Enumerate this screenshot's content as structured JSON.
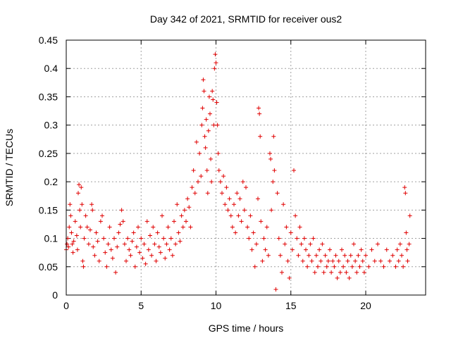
{
  "chart_data": {
    "type": "scatter",
    "title": "Day 342 of 2021, SRMTID for receiver ous2",
    "xlabel": "GPS time / hours",
    "ylabel": "SRMTID / TECUs",
    "xlim": [
      0,
      24
    ],
    "ylim": [
      0,
      0.45
    ],
    "x_ticks": [
      0,
      5,
      10,
      15,
      20
    ],
    "x_tick_labels": [
      "0",
      "5",
      "10",
      "15",
      "20"
    ],
    "y_ticks": [
      0,
      0.05,
      0.1,
      0.15,
      0.2,
      0.25,
      0.3,
      0.35,
      0.4,
      0.45
    ],
    "y_tick_labels": [
      "0",
      "0.05",
      "0.1",
      "0.15",
      "0.2",
      "0.25",
      "0.3",
      "0.35",
      "0.4",
      "0.45"
    ],
    "grid": true,
    "marker": "plus",
    "color": "#e00000",
    "series": [
      {
        "name": "ous2",
        "points": [
          [
            0.0,
            0.08
          ],
          [
            0.05,
            0.09
          ],
          [
            0.1,
            0.1
          ],
          [
            0.15,
            0.085
          ],
          [
            0.2,
            0.12
          ],
          [
            0.25,
            0.16
          ],
          [
            0.3,
            0.14
          ],
          [
            0.35,
            0.11
          ],
          [
            0.4,
            0.09
          ],
          [
            0.45,
            0.075
          ],
          [
            0.5,
            0.095
          ],
          [
            0.6,
            0.13
          ],
          [
            0.7,
            0.105
          ],
          [
            0.75,
            0.08
          ],
          [
            0.8,
            0.18
          ],
          [
            0.85,
            0.195
          ],
          [
            0.9,
            0.15
          ],
          [
            0.95,
            0.12
          ],
          [
            1.0,
            0.19
          ],
          [
            1.05,
            0.16
          ],
          [
            1.1,
            0.06
          ],
          [
            1.15,
            0.05
          ],
          [
            1.2,
            0.1
          ],
          [
            1.3,
            0.14
          ],
          [
            1.4,
            0.12
          ],
          [
            1.5,
            0.09
          ],
          [
            1.6,
            0.115
          ],
          [
            1.7,
            0.16
          ],
          [
            1.75,
            0.15
          ],
          [
            1.8,
            0.085
          ],
          [
            1.9,
            0.07
          ],
          [
            2.0,
            0.11
          ],
          [
            2.1,
            0.095
          ],
          [
            2.2,
            0.06
          ],
          [
            2.3,
            0.13
          ],
          [
            2.4,
            0.14
          ],
          [
            2.5,
            0.1
          ],
          [
            2.6,
            0.075
          ],
          [
            2.7,
            0.05
          ],
          [
            2.8,
            0.09
          ],
          [
            2.9,
            0.12
          ],
          [
            3.0,
            0.08
          ],
          [
            3.1,
            0.065
          ],
          [
            3.2,
            0.1
          ],
          [
            3.3,
            0.04
          ],
          [
            3.4,
            0.085
          ],
          [
            3.5,
            0.11
          ],
          [
            3.6,
            0.125
          ],
          [
            3.7,
            0.15
          ],
          [
            3.8,
            0.13
          ],
          [
            3.9,
            0.09
          ],
          [
            4.0,
            0.06
          ],
          [
            4.1,
            0.1
          ],
          [
            4.2,
            0.08
          ],
          [
            4.3,
            0.07
          ],
          [
            4.4,
            0.095
          ],
          [
            4.5,
            0.11
          ],
          [
            4.6,
            0.05
          ],
          [
            4.7,
            0.085
          ],
          [
            4.8,
            0.12
          ],
          [
            4.9,
            0.075
          ],
          [
            5.0,
            0.1
          ],
          [
            5.1,
            0.065
          ],
          [
            5.2,
            0.09
          ],
          [
            5.3,
            0.055
          ],
          [
            5.4,
            0.13
          ],
          [
            5.5,
            0.08
          ],
          [
            5.6,
            0.105
          ],
          [
            5.7,
            0.07
          ],
          [
            5.8,
            0.12
          ],
          [
            5.9,
            0.09
          ],
          [
            6.0,
            0.06
          ],
          [
            6.1,
            0.11
          ],
          [
            6.2,
            0.085
          ],
          [
            6.3,
            0.075
          ],
          [
            6.4,
            0.14
          ],
          [
            6.5,
            0.1
          ],
          [
            6.6,
            0.065
          ],
          [
            6.7,
            0.09
          ],
          [
            6.8,
            0.12
          ],
          [
            6.9,
            0.08
          ],
          [
            7.0,
            0.1
          ],
          [
            7.1,
            0.07
          ],
          [
            7.2,
            0.13
          ],
          [
            7.3,
            0.09
          ],
          [
            7.4,
            0.16
          ],
          [
            7.5,
            0.11
          ],
          [
            7.6,
            0.095
          ],
          [
            7.7,
            0.14
          ],
          [
            7.8,
            0.12
          ],
          [
            7.9,
            0.15
          ],
          [
            8.0,
            0.13
          ],
          [
            8.1,
            0.17
          ],
          [
            8.2,
            0.155
          ],
          [
            8.3,
            0.12
          ],
          [
            8.4,
            0.19
          ],
          [
            8.5,
            0.22
          ],
          [
            8.6,
            0.18
          ],
          [
            8.7,
            0.27
          ],
          [
            8.8,
            0.2
          ],
          [
            8.9,
            0.25
          ],
          [
            9.0,
            0.21
          ],
          [
            9.05,
            0.3
          ],
          [
            9.1,
            0.33
          ],
          [
            9.15,
            0.38
          ],
          [
            9.2,
            0.36
          ],
          [
            9.25,
            0.28
          ],
          [
            9.3,
            0.26
          ],
          [
            9.35,
            0.31
          ],
          [
            9.4,
            0.22
          ],
          [
            9.45,
            0.18
          ],
          [
            9.5,
            0.29
          ],
          [
            9.55,
            0.35
          ],
          [
            9.6,
            0.32
          ],
          [
            9.65,
            0.24
          ],
          [
            9.7,
            0.2
          ],
          [
            9.75,
            0.36
          ],
          [
            9.8,
            0.345
          ],
          [
            9.85,
            0.3
          ],
          [
            9.9,
            0.4
          ],
          [
            9.95,
            0.425
          ],
          [
            10.0,
            0.41
          ],
          [
            10.05,
            0.34
          ],
          [
            10.1,
            0.3
          ],
          [
            10.15,
            0.25
          ],
          [
            10.2,
            0.22
          ],
          [
            10.3,
            0.2
          ],
          [
            10.4,
            0.18
          ],
          [
            10.5,
            0.21
          ],
          [
            10.6,
            0.16
          ],
          [
            10.7,
            0.19
          ],
          [
            10.8,
            0.15
          ],
          [
            10.9,
            0.17
          ],
          [
            11.0,
            0.14
          ],
          [
            11.1,
            0.12
          ],
          [
            11.2,
            0.16
          ],
          [
            11.3,
            0.11
          ],
          [
            11.4,
            0.18
          ],
          [
            11.5,
            0.14
          ],
          [
            11.6,
            0.17
          ],
          [
            11.7,
            0.13
          ],
          [
            11.8,
            0.2
          ],
          [
            11.9,
            0.15
          ],
          [
            12.0,
            0.19
          ],
          [
            12.1,
            0.12
          ],
          [
            12.2,
            0.1
          ],
          [
            12.3,
            0.14
          ],
          [
            12.4,
            0.08
          ],
          [
            12.5,
            0.11
          ],
          [
            12.6,
            0.05
          ],
          [
            12.7,
            0.09
          ],
          [
            12.8,
            0.17
          ],
          [
            12.85,
            0.33
          ],
          [
            12.9,
            0.32
          ],
          [
            12.95,
            0.28
          ],
          [
            13.0,
            0.13
          ],
          [
            13.1,
            0.06
          ],
          [
            13.2,
            0.1
          ],
          [
            13.3,
            0.08
          ],
          [
            13.4,
            0.12
          ],
          [
            13.5,
            0.07
          ],
          [
            13.6,
            0.25
          ],
          [
            13.65,
            0.24
          ],
          [
            13.7,
            0.15
          ],
          [
            13.8,
            0.2
          ],
          [
            13.85,
            0.28
          ],
          [
            13.9,
            0.22
          ],
          [
            14.0,
            0.01
          ],
          [
            14.1,
            0.18
          ],
          [
            14.2,
            0.1
          ],
          [
            14.3,
            0.07
          ],
          [
            14.4,
            0.04
          ],
          [
            14.5,
            0.16
          ],
          [
            14.6,
            0.09
          ],
          [
            14.7,
            0.12
          ],
          [
            14.8,
            0.06
          ],
          [
            14.9,
            0.03
          ],
          [
            15.0,
            0.11
          ],
          [
            15.1,
            0.08
          ],
          [
            15.2,
            0.22
          ],
          [
            15.3,
            0.14
          ],
          [
            15.4,
            0.1
          ],
          [
            15.5,
            0.07
          ],
          [
            15.6,
            0.12
          ],
          [
            15.7,
            0.09
          ],
          [
            15.8,
            0.06
          ],
          [
            15.9,
            0.1
          ],
          [
            16.0,
            0.08
          ],
          [
            16.1,
            0.05
          ],
          [
            16.2,
            0.07
          ],
          [
            16.3,
            0.09
          ],
          [
            16.4,
            0.06
          ],
          [
            16.5,
            0.1
          ],
          [
            16.6,
            0.04
          ],
          [
            16.7,
            0.07
          ],
          [
            16.8,
            0.05
          ],
          [
            16.9,
            0.08
          ],
          [
            17.0,
            0.06
          ],
          [
            17.1,
            0.09
          ],
          [
            17.2,
            0.04
          ],
          [
            17.3,
            0.07
          ],
          [
            17.4,
            0.05
          ],
          [
            17.5,
            0.06
          ],
          [
            17.6,
            0.08
          ],
          [
            17.7,
            0.04
          ],
          [
            17.8,
            0.06
          ],
          [
            17.9,
            0.05
          ],
          [
            18.0,
            0.07
          ],
          [
            18.1,
            0.03
          ],
          [
            18.2,
            0.06
          ],
          [
            18.3,
            0.04
          ],
          [
            18.4,
            0.08
          ],
          [
            18.5,
            0.05
          ],
          [
            18.6,
            0.07
          ],
          [
            18.7,
            0.04
          ],
          [
            18.8,
            0.06
          ],
          [
            18.9,
            0.03
          ],
          [
            19.0,
            0.07
          ],
          [
            19.1,
            0.05
          ],
          [
            19.2,
            0.09
          ],
          [
            19.3,
            0.06
          ],
          [
            19.4,
            0.04
          ],
          [
            19.5,
            0.07
          ],
          [
            19.6,
            0.05
          ],
          [
            19.7,
            0.08
          ],
          [
            19.8,
            0.06
          ],
          [
            19.9,
            0.04
          ],
          [
            20.0,
            0.07
          ],
          [
            20.2,
            0.05
          ],
          [
            20.4,
            0.08
          ],
          [
            20.6,
            0.06
          ],
          [
            20.8,
            0.09
          ],
          [
            21.0,
            0.06
          ],
          [
            21.2,
            0.05
          ],
          [
            21.4,
            0.08
          ],
          [
            21.6,
            0.06
          ],
          [
            21.8,
            0.07
          ],
          [
            22.0,
            0.05
          ],
          [
            22.1,
            0.08
          ],
          [
            22.2,
            0.06
          ],
          [
            22.3,
            0.09
          ],
          [
            22.4,
            0.07
          ],
          [
            22.5,
            0.05
          ],
          [
            22.6,
            0.19
          ],
          [
            22.65,
            0.18
          ],
          [
            22.7,
            0.11
          ],
          [
            22.75,
            0.08
          ],
          [
            22.8,
            0.06
          ],
          [
            22.9,
            0.09
          ],
          [
            22.95,
            0.14
          ]
        ]
      }
    ]
  }
}
